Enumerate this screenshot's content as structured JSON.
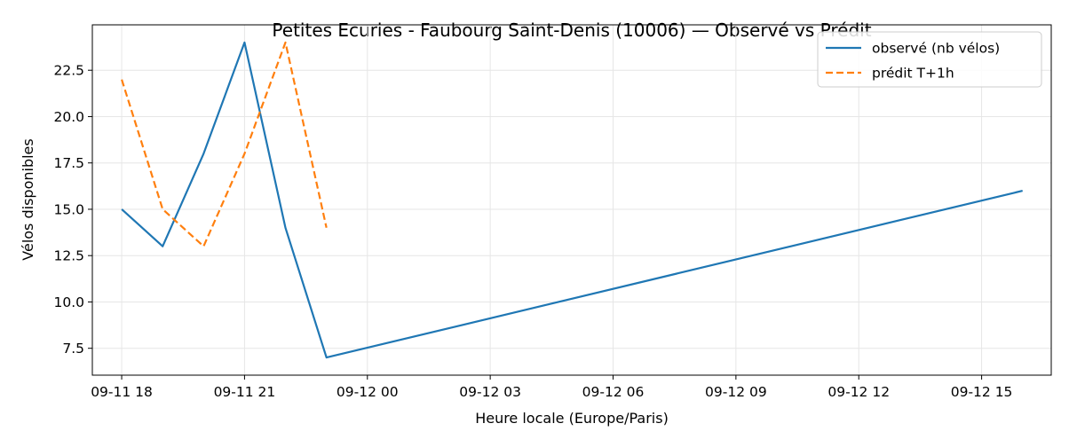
{
  "chart_data": {
    "type": "line",
    "title": "Petites Ecuries - Faubourg Saint-Denis (10006) — Observé vs Prédit",
    "xlabel": "Heure locale (Europe/Paris)",
    "ylabel": "Vélos disponibles",
    "x_ticks": [
      "09-11 18",
      "09-11 21",
      "09-12 00",
      "09-12 03",
      "09-12 06",
      "09-12 09",
      "09-12 12",
      "09-12 15"
    ],
    "y_ticks": [
      "7.5",
      "10.0",
      "12.5",
      "15.0",
      "17.5",
      "20.0",
      "22.5"
    ],
    "ylim": [
      6.05,
      24.95
    ],
    "xlim": [
      "2024-09-11 17:17",
      "2024-09-12 16:42"
    ],
    "grid": true,
    "legend_position": "top-right",
    "series": [
      {
        "name": "observé (nb vélos)",
        "color": "#1f77b4",
        "style": "solid",
        "points": [
          {
            "x": "2024-09-11 18:00",
            "y": 15
          },
          {
            "x": "2024-09-11 19:00",
            "y": 13
          },
          {
            "x": "2024-09-11 20:00",
            "y": 18
          },
          {
            "x": "2024-09-11 21:00",
            "y": 24
          },
          {
            "x": "2024-09-11 22:00",
            "y": 14
          },
          {
            "x": "2024-09-11 23:00",
            "y": 7
          },
          {
            "x": "2024-09-12 16:00",
            "y": 16
          }
        ]
      },
      {
        "name": "prédit T+1h",
        "color": "#ff7f0e",
        "style": "dashed",
        "points": [
          {
            "x": "2024-09-11 18:00",
            "y": 22
          },
          {
            "x": "2024-09-11 19:00",
            "y": 15
          },
          {
            "x": "2024-09-11 20:00",
            "y": 13
          },
          {
            "x": "2024-09-11 21:00",
            "y": 18
          },
          {
            "x": "2024-09-11 22:00",
            "y": 24
          },
          {
            "x": "2024-09-11 23:00",
            "y": 14
          }
        ]
      }
    ]
  }
}
